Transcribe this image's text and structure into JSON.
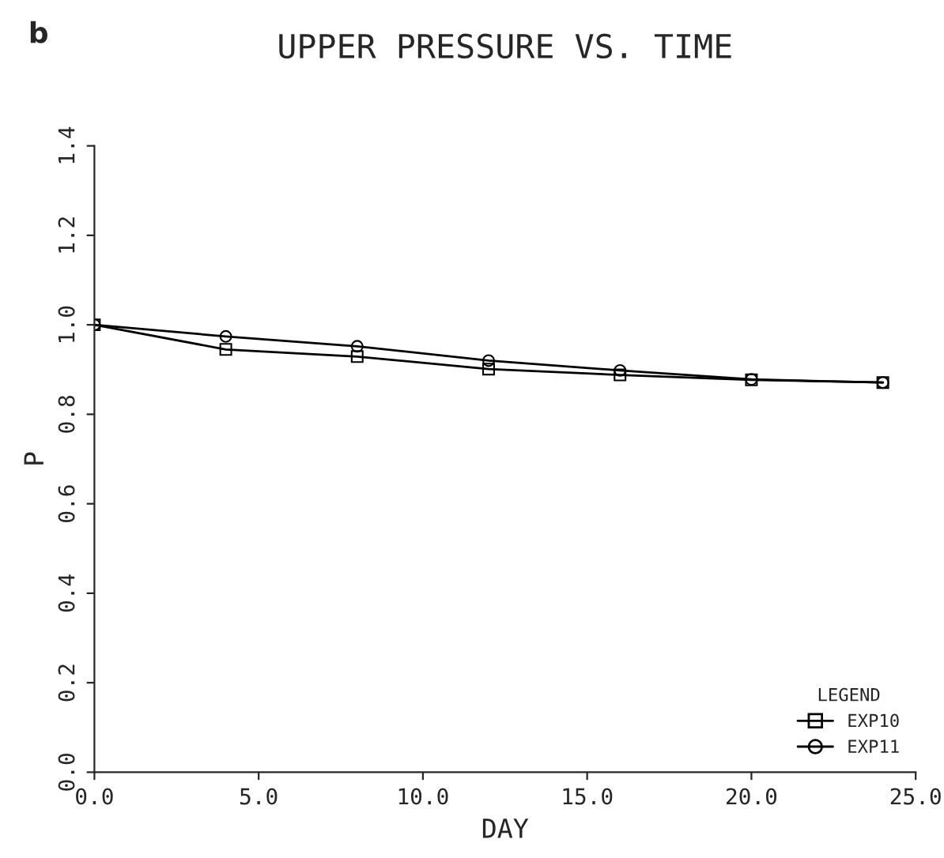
{
  "chart_data": {
    "type": "line",
    "title": "UPPER PRESSURE VS. TIME",
    "xlabel": "DAY",
    "ylabel": "P",
    "legend_title": "LEGEND",
    "annotations": [
      "b"
    ],
    "x": [
      0,
      4,
      8,
      12,
      16,
      20,
      24
    ],
    "series": [
      {
        "name": "EXP10",
        "color": "#000000",
        "marker": "square",
        "values": [
          1.0,
          0.945,
          0.929,
          0.901,
          0.888,
          0.877,
          0.871
        ]
      },
      {
        "name": "EXP11",
        "color": "#000000",
        "marker": "circle",
        "values": [
          1.0,
          0.974,
          0.952,
          0.92,
          0.898,
          0.878,
          0.871
        ]
      }
    ],
    "xlim": [
      0,
      25
    ],
    "xticks": [
      {
        "value": 0,
        "label": "0.0"
      },
      {
        "value": 5,
        "label": "5.0"
      },
      {
        "value": 10,
        "label": "10.0"
      },
      {
        "value": 15,
        "label": "15.0"
      },
      {
        "value": 20,
        "label": "20.0"
      },
      {
        "value": 25,
        "label": "25.0"
      }
    ],
    "ylim": [
      0,
      1.4
    ],
    "yticks": [
      {
        "value": 0,
        "label": "0.0"
      },
      {
        "value": 0.2,
        "label": "0.2"
      },
      {
        "value": 0.4,
        "label": "0.4"
      },
      {
        "value": 0.6,
        "label": "0.6"
      },
      {
        "value": 0.8,
        "label": "0.8"
      },
      {
        "value": 1.0,
        "label": "1.0"
      },
      {
        "value": 1.2,
        "label": "1.2"
      },
      {
        "value": 1.4,
        "label": "1.4"
      }
    ],
    "grid": false,
    "legend": "bottom right",
    "line_style": "solid"
  }
}
